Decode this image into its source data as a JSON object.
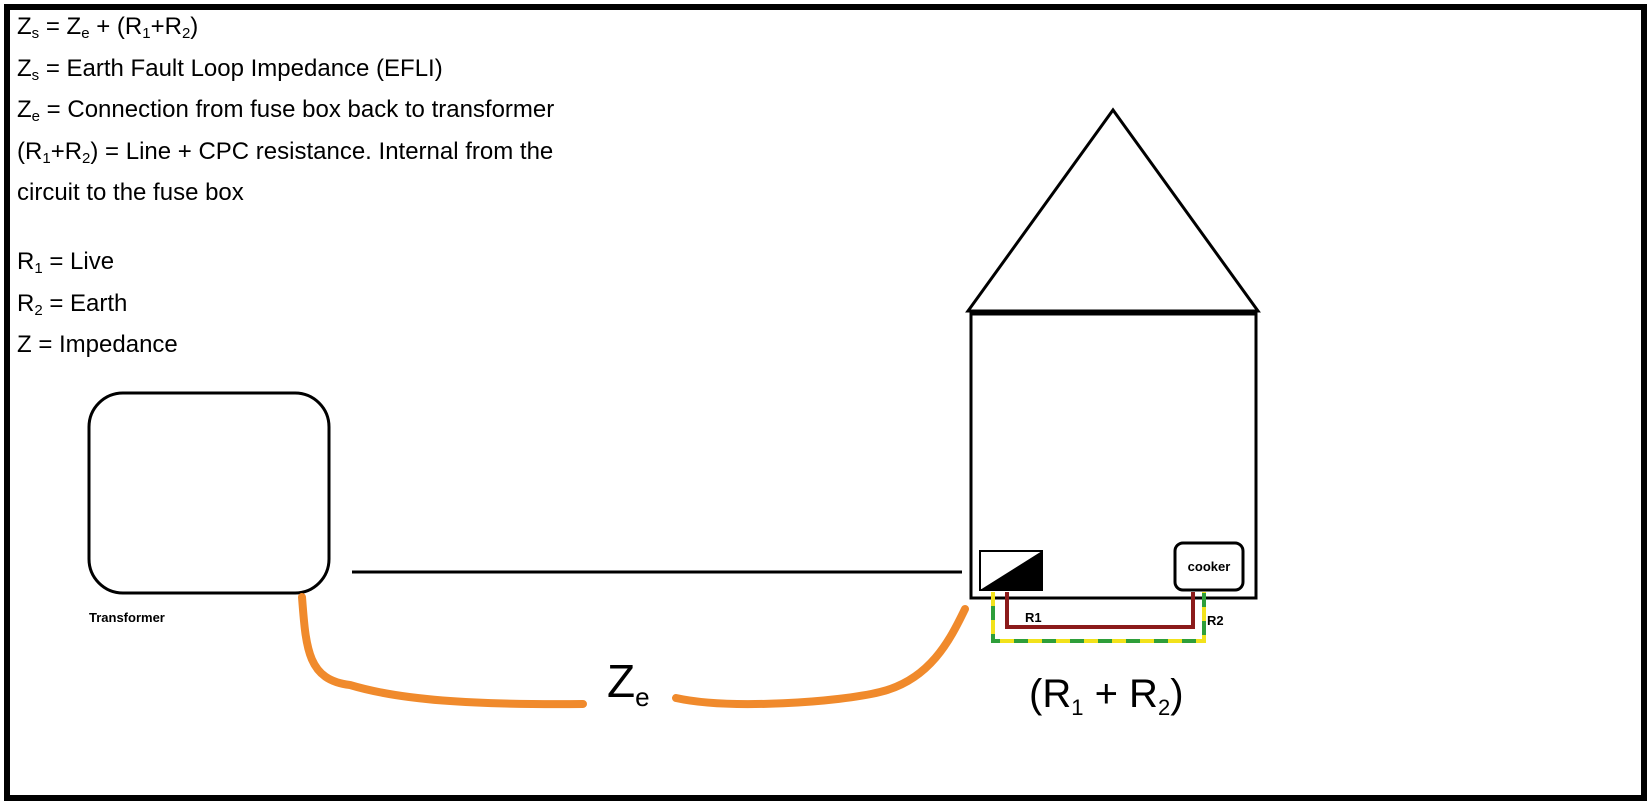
{
  "notes": {
    "formula": {
      "a": "Z",
      "a_sub": "s",
      "eq": " = ",
      "b": "Z",
      "b_sub": "e",
      "plus": " + (",
      "r1": "R",
      "r1_sub": "1",
      "p": "+",
      "r2": "R",
      "r2_sub": "2",
      "close": ")"
    },
    "zs_def": {
      "sym": "Z",
      "sub": "s",
      "text": " = Earth Fault Loop Impedance (EFLI)"
    },
    "ze_def": {
      "sym": "Z",
      "sub": "e",
      "text": " = Connection from fuse box back to transformer"
    },
    "r1r2_def": {
      "open": "(",
      "r1": "R",
      "r1_sub": "1",
      "p": "+",
      "r2": "R",
      "r2_sub": "2",
      "text": ") = Line + CPC resistance. Internal from the"
    },
    "r1r2_def_cont": "circuit to the fuse box",
    "r1_def": {
      "sym": "R",
      "sub": "1",
      "text": " = Live"
    },
    "r2_def": {
      "sym": "R",
      "sub": "2",
      "text": " = Earth"
    },
    "z_def": "Z = Impedance"
  },
  "diagram": {
    "transformer_label": "Transformer",
    "cooker_label": "cooker",
    "r1_wire_label": "R1",
    "r2_wire_label": "R2",
    "ze_label": {
      "sym": "Z",
      "sub": "e"
    },
    "r1r2_label": {
      "open": "(R",
      "sub1": "1",
      "mid": " + R",
      "sub2": "2",
      "close": ")"
    }
  },
  "colors": {
    "outline": "#000000",
    "ze_path": "#f08a2c",
    "live_wire": "#8b1a1a",
    "earth_green": "#2e9e3a",
    "earth_yellow": "#f2e21b"
  }
}
